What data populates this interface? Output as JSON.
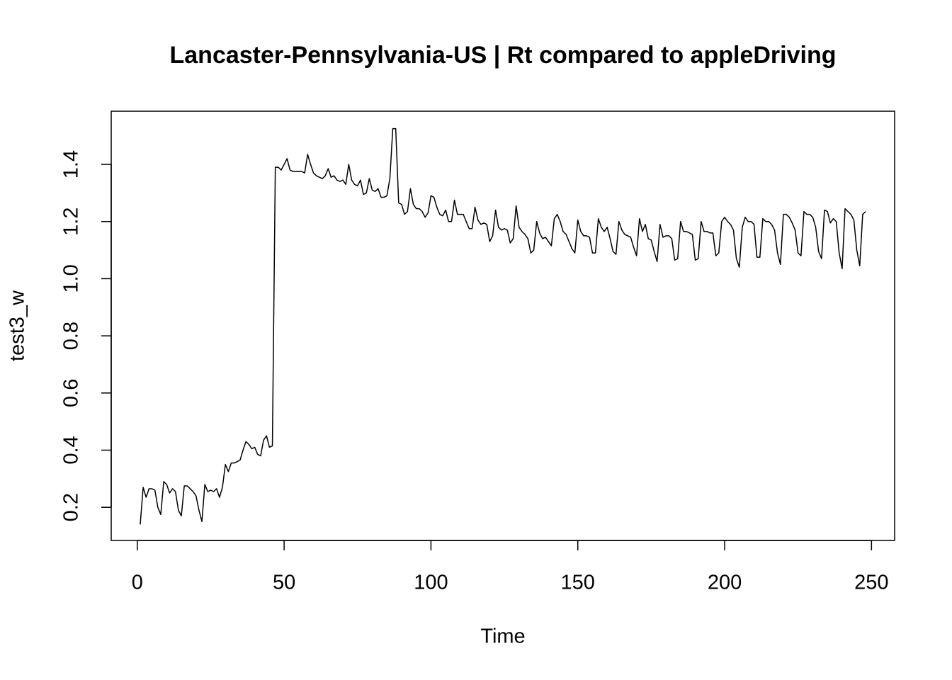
{
  "chart_data": {
    "type": "line",
    "title": "Lancaster-Pennsylvania-US | Rt compared to appleDriving",
    "x_label": "Time",
    "y_label": "test3_w",
    "color": "#000000",
    "x": [
      1,
      2,
      3,
      4,
      5,
      6,
      7,
      8,
      9,
      10,
      11,
      12,
      13,
      14,
      15,
      16,
      17,
      18,
      19,
      20,
      21,
      22,
      23,
      24,
      25,
      26,
      27,
      28,
      29,
      30,
      31,
      32,
      33,
      34,
      35,
      36,
      37,
      38,
      39,
      40,
      41,
      42,
      43,
      44,
      45,
      46,
      47,
      48,
      49,
      50,
      51,
      52,
      53,
      54,
      55,
      56,
      57,
      58,
      59,
      60,
      61,
      62,
      63,
      64,
      65,
      66,
      67,
      68,
      69,
      70,
      71,
      72,
      73,
      74,
      75,
      76,
      77,
      78,
      79,
      80,
      81,
      82,
      83,
      84,
      85,
      86,
      87,
      88,
      89,
      90,
      91,
      92,
      93,
      94,
      95,
      96,
      97,
      98,
      99,
      100,
      101,
      102,
      103,
      104,
      105,
      106,
      107,
      108,
      109,
      110,
      111,
      112,
      113,
      114,
      115,
      116,
      117,
      118,
      119,
      120,
      121,
      122,
      123,
      124,
      125,
      126,
      127,
      128,
      129,
      130,
      131,
      132,
      133,
      134,
      135,
      136,
      137,
      138,
      139,
      140,
      141,
      142,
      143,
      144,
      145,
      146,
      147,
      148,
      149,
      150,
      151,
      152,
      153,
      154,
      155,
      156,
      157,
      158,
      159,
      160,
      161,
      162,
      163,
      164,
      165,
      166,
      167,
      168,
      169,
      170,
      171,
      172,
      173,
      174,
      175,
      176,
      177,
      178,
      179,
      180,
      181,
      182,
      183,
      184,
      185,
      186,
      187,
      188,
      189,
      190,
      191,
      192,
      193,
      194,
      195,
      196,
      197,
      198,
      199,
      200,
      201,
      202,
      203,
      204,
      205,
      206,
      207,
      208,
      209,
      210,
      211,
      212,
      213,
      214,
      215,
      216,
      217,
      218,
      219,
      220,
      221,
      222,
      223,
      224,
      225,
      226,
      227,
      228,
      229,
      230,
      231,
      232,
      233,
      234,
      235,
      236,
      237,
      238,
      239,
      240,
      241,
      242,
      243,
      244,
      245,
      246,
      247,
      248
    ],
    "values": [
      0.14,
      0.27,
      0.235,
      0.265,
      0.265,
      0.26,
      0.2,
      0.175,
      0.29,
      0.28,
      0.25,
      0.265,
      0.255,
      0.19,
      0.17,
      0.275,
      0.275,
      0.265,
      0.255,
      0.24,
      0.19,
      0.15,
      0.28,
      0.255,
      0.26,
      0.255,
      0.265,
      0.235,
      0.27,
      0.35,
      0.325,
      0.355,
      0.355,
      0.36,
      0.365,
      0.4,
      0.43,
      0.42,
      0.405,
      0.41,
      0.385,
      0.38,
      0.435,
      0.45,
      0.41,
      0.415,
      1.39,
      1.39,
      1.38,
      1.4,
      1.42,
      1.38,
      1.375,
      1.375,
      1.375,
      1.375,
      1.37,
      1.435,
      1.4,
      1.37,
      1.36,
      1.355,
      1.35,
      1.36,
      1.385,
      1.355,
      1.36,
      1.345,
      1.34,
      1.345,
      1.33,
      1.4,
      1.345,
      1.33,
      1.325,
      1.345,
      1.295,
      1.3,
      1.35,
      1.31,
      1.305,
      1.315,
      1.285,
      1.285,
      1.29,
      1.35,
      1.525,
      1.525,
      1.265,
      1.26,
      1.225,
      1.235,
      1.315,
      1.26,
      1.245,
      1.245,
      1.235,
      1.215,
      1.23,
      1.29,
      1.285,
      1.25,
      1.225,
      1.22,
      1.24,
      1.2,
      1.2,
      1.275,
      1.225,
      1.225,
      1.225,
      1.2,
      1.175,
      1.175,
      1.25,
      1.205,
      1.19,
      1.195,
      1.19,
      1.13,
      1.15,
      1.24,
      1.18,
      1.17,
      1.175,
      1.17,
      1.125,
      1.14,
      1.255,
      1.18,
      1.165,
      1.155,
      1.14,
      1.09,
      1.1,
      1.2,
      1.16,
      1.14,
      1.145,
      1.13,
      1.115,
      1.21,
      1.225,
      1.2,
      1.165,
      1.155,
      1.13,
      1.105,
      1.09,
      1.205,
      1.165,
      1.15,
      1.15,
      1.145,
      1.09,
      1.09,
      1.21,
      1.18,
      1.165,
      1.18,
      1.14,
      1.095,
      1.085,
      1.2,
      1.17,
      1.155,
      1.15,
      1.145,
      1.11,
      1.08,
      1.21,
      1.165,
      1.19,
      1.14,
      1.135,
      1.095,
      1.06,
      1.19,
      1.145,
      1.15,
      1.15,
      1.14,
      1.065,
      1.07,
      1.2,
      1.165,
      1.165,
      1.16,
      1.155,
      1.065,
      1.07,
      1.2,
      1.165,
      1.165,
      1.16,
      1.16,
      1.08,
      1.09,
      1.2,
      1.215,
      1.2,
      1.19,
      1.17,
      1.07,
      1.04,
      1.18,
      1.215,
      1.2,
      1.2,
      1.19,
      1.075,
      1.075,
      1.21,
      1.2,
      1.2,
      1.19,
      1.17,
      1.09,
      1.05,
      1.225,
      1.225,
      1.215,
      1.195,
      1.17,
      1.09,
      1.08,
      1.235,
      1.225,
      1.225,
      1.215,
      1.18,
      1.095,
      1.07,
      1.24,
      1.235,
      1.195,
      1.21,
      1.2,
      1.09,
      1.035,
      1.245,
      1.235,
      1.225,
      1.205,
      1.1,
      1.045,
      1.225,
      1.235
    ],
    "xlim": [
      -8.88,
      257.88
    ],
    "ylim": [
      0.084,
      1.586
    ],
    "xticks": [
      0,
      50,
      100,
      150,
      200,
      250
    ],
    "yticks": [
      0.2,
      0.4,
      0.6,
      0.8,
      {
        "value": 1,
        "label": "1.0"
      },
      1.2,
      1.4
    ]
  }
}
